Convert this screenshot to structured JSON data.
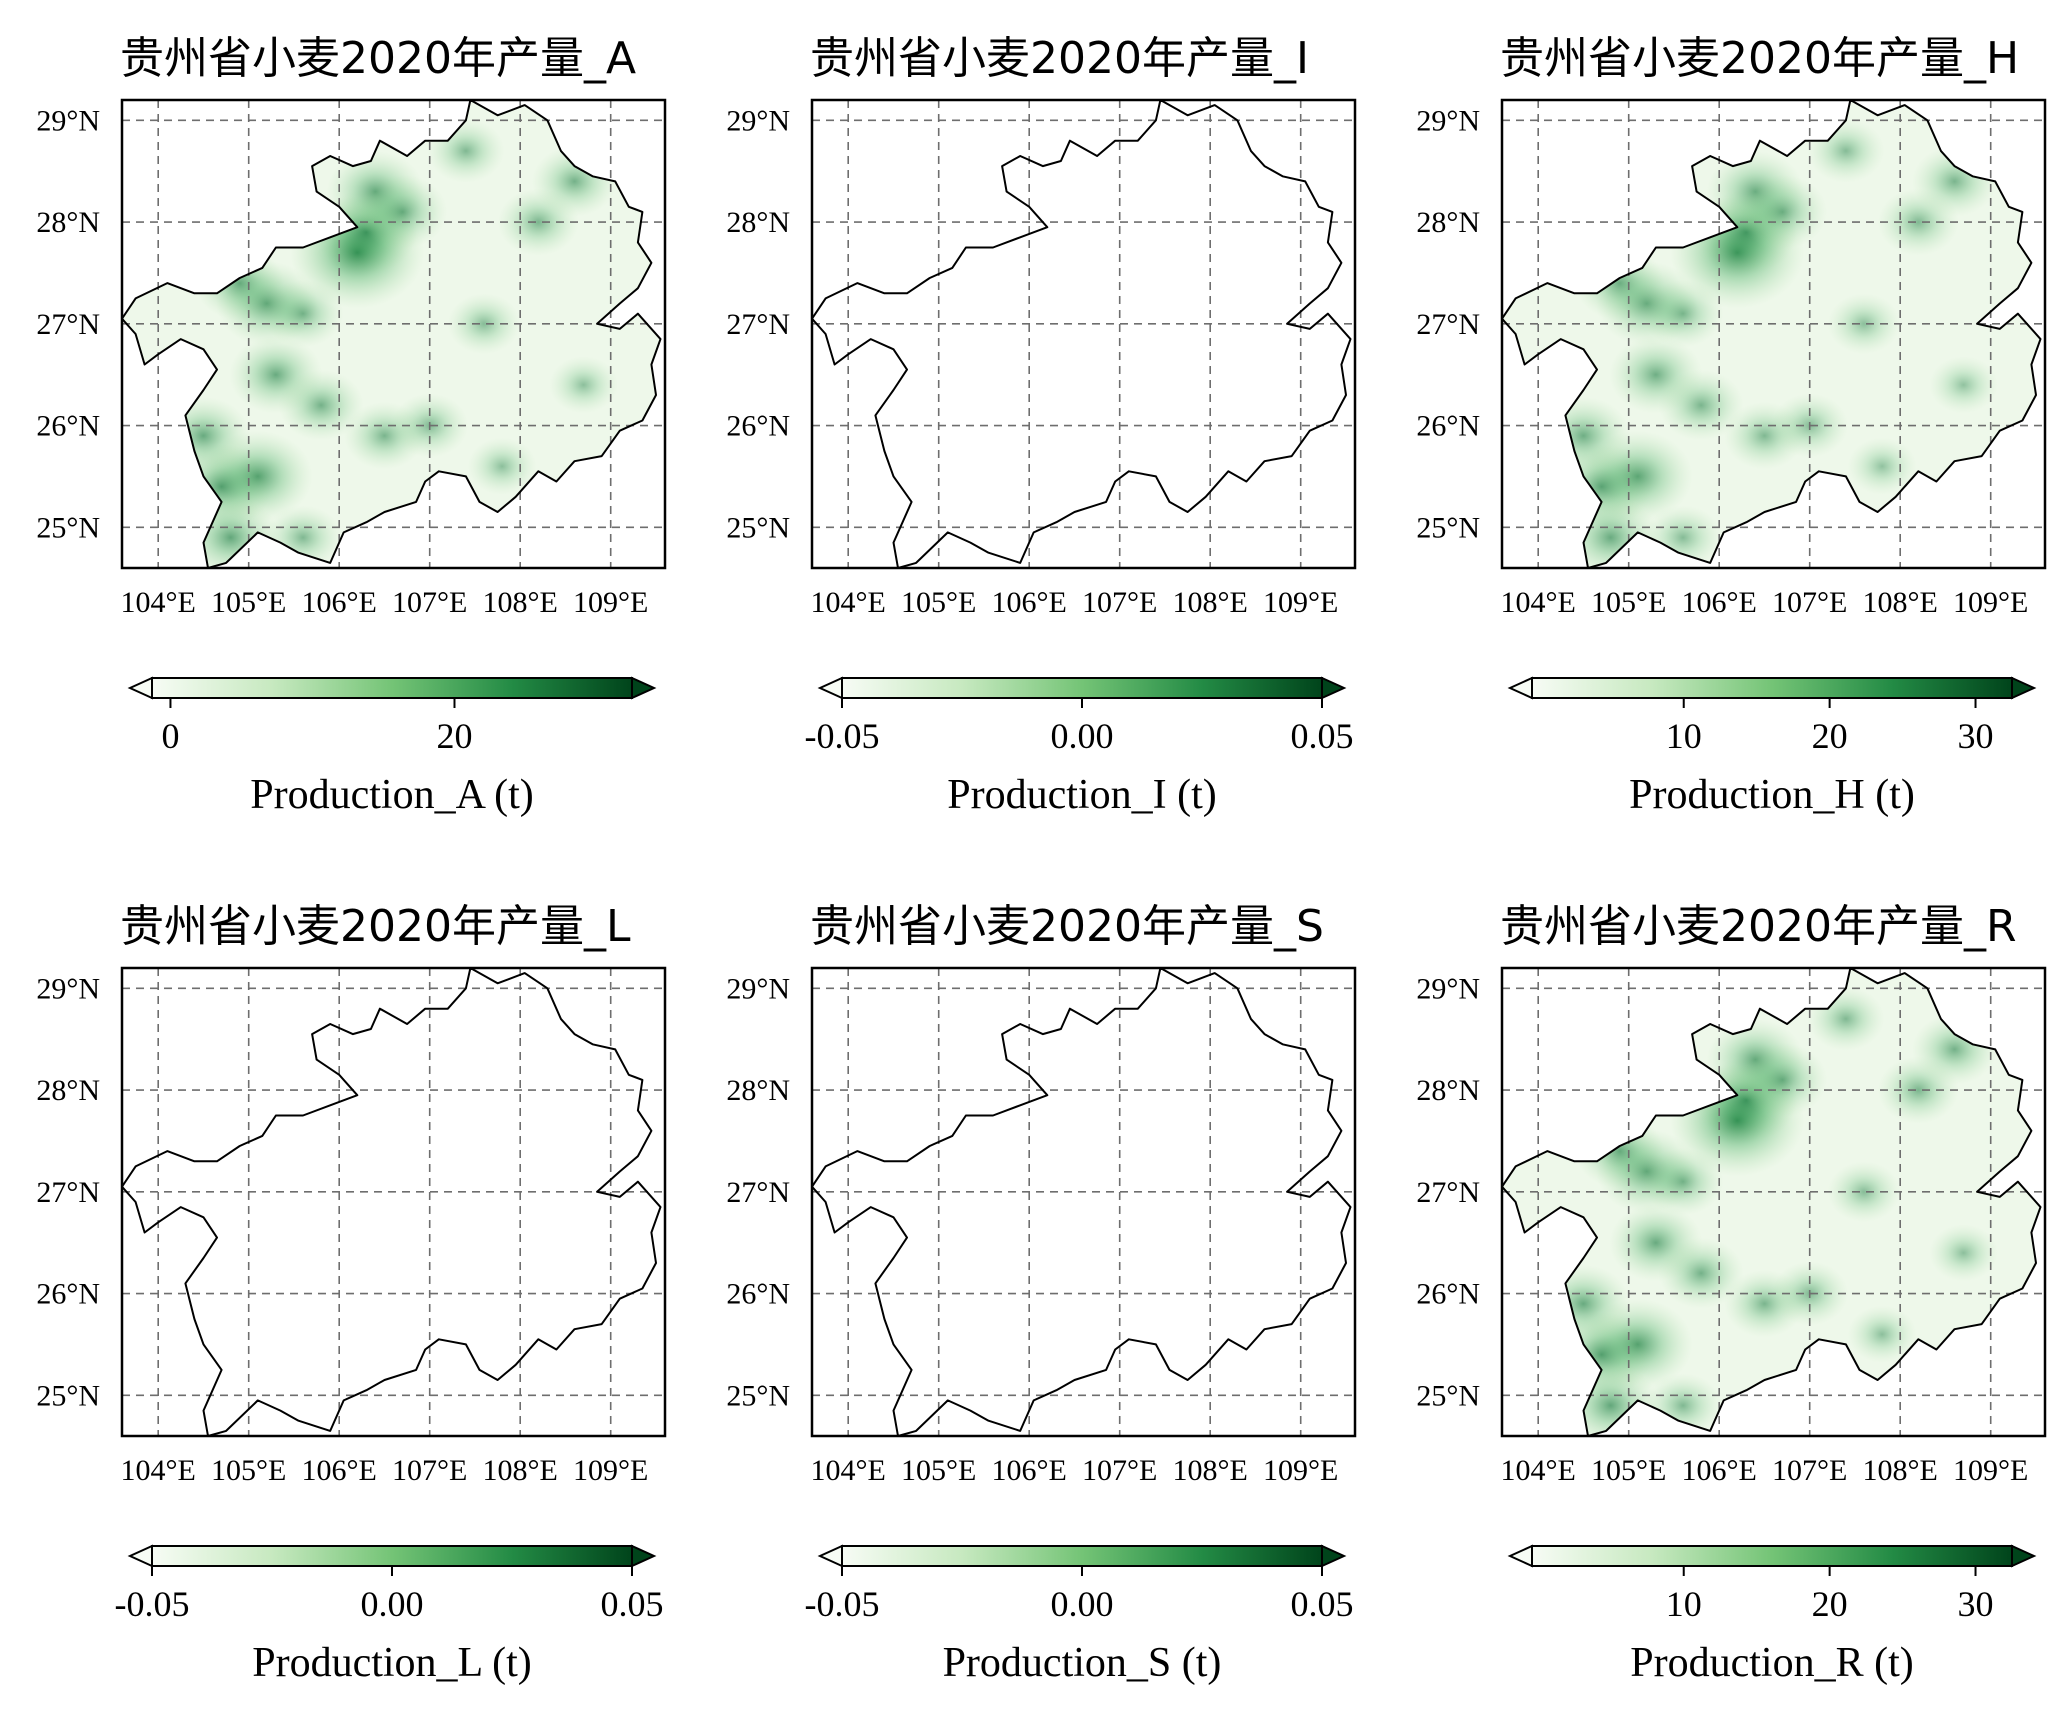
{
  "figure": {
    "lat_ticks": [
      29,
      28,
      27,
      26,
      25
    ],
    "lon_ticks": [
      104,
      105,
      106,
      107,
      108,
      109
    ],
    "lat_tick_labels": [
      "29°N",
      "28°N",
      "27°N",
      "26°N",
      "25°N"
    ],
    "lon_tick_labels": [
      "104°E",
      "105°E",
      "106°E",
      "107°E",
      "108°E",
      "109°E"
    ],
    "extent": {
      "lon_min": 103.6,
      "lon_max": 109.6,
      "lat_min": 24.6,
      "lat_max": 29.2
    },
    "colormap": "Greens",
    "colorbar_colors": [
      "#f7fcf5",
      "#c7e9c0",
      "#74c476",
      "#238b45",
      "#00441b"
    ],
    "panels": [
      {
        "title": "贵州省小麦2020年产量_A",
        "cbar_label": "Production_A (t)",
        "cbar_ticks": [
          {
            "v": 0,
            "t": "0"
          },
          {
            "v": 20,
            "t": "20"
          }
        ],
        "cbar_range": [
          -1.3,
          32.5
        ],
        "has_data": true,
        "intensity": 1.0
      },
      {
        "title": "贵州省小麦2020年产量_I",
        "cbar_label": "Production_I (t)",
        "cbar_ticks": [
          {
            "v": -0.05,
            "t": "-0.05"
          },
          {
            "v": 0.0,
            "t": "0.00"
          },
          {
            "v": 0.05,
            "t": "0.05"
          }
        ],
        "cbar_range": [
          -0.05,
          0.05
        ],
        "has_data": false,
        "intensity": 0
      },
      {
        "title": "贵州省小麦2020年产量_H",
        "cbar_label": "Production_H (t)",
        "cbar_ticks": [
          {
            "v": 10,
            "t": "10"
          },
          {
            "v": 20,
            "t": "20"
          },
          {
            "v": 30,
            "t": "30"
          }
        ],
        "cbar_range": [
          -0.4,
          32.5
        ],
        "has_data": true,
        "intensity": 0.95
      },
      {
        "title": "贵州省小麦2020年产量_L",
        "cbar_label": "Production_L (t)",
        "cbar_ticks": [
          {
            "v": -0.05,
            "t": "-0.05"
          },
          {
            "v": 0.0,
            "t": "0.00"
          },
          {
            "v": 0.05,
            "t": "0.05"
          }
        ],
        "cbar_range": [
          -0.05,
          0.05
        ],
        "has_data": false,
        "intensity": 0
      },
      {
        "title": "贵州省小麦2020年产量_S",
        "cbar_label": "Production_S (t)",
        "cbar_ticks": [
          {
            "v": -0.05,
            "t": "-0.05"
          },
          {
            "v": 0.0,
            "t": "0.00"
          },
          {
            "v": 0.05,
            "t": "0.05"
          }
        ],
        "cbar_range": [
          -0.05,
          0.05
        ],
        "has_data": false,
        "intensity": 0
      },
      {
        "title": "贵州省小麦2020年产量_R",
        "cbar_label": "Production_R (t)",
        "cbar_ticks": [
          {
            "v": 10,
            "t": "10"
          },
          {
            "v": 20,
            "t": "20"
          },
          {
            "v": 30,
            "t": "30"
          }
        ],
        "cbar_range": [
          -0.4,
          32.5
        ],
        "has_data": true,
        "intensity": 1.0
      }
    ],
    "hotspots": [
      {
        "lon": 106.2,
        "lat": 27.7,
        "weight": 1.0
      },
      {
        "lon": 106.3,
        "lat": 27.9,
        "weight": 0.6
      },
      {
        "lon": 106.4,
        "lat": 28.3,
        "weight": 0.55
      },
      {
        "lon": 106.7,
        "lat": 28.1,
        "weight": 0.45
      },
      {
        "lon": 105.2,
        "lat": 27.2,
        "weight": 0.6
      },
      {
        "lon": 104.9,
        "lat": 27.4,
        "weight": 0.45
      },
      {
        "lon": 105.6,
        "lat": 27.1,
        "weight": 0.35
      },
      {
        "lon": 105.3,
        "lat": 26.5,
        "weight": 0.5
      },
      {
        "lon": 105.8,
        "lat": 26.2,
        "weight": 0.4
      },
      {
        "lon": 105.1,
        "lat": 25.5,
        "weight": 0.7
      },
      {
        "lon": 104.7,
        "lat": 25.4,
        "weight": 0.6
      },
      {
        "lon": 104.5,
        "lat": 25.9,
        "weight": 0.5
      },
      {
        "lon": 104.8,
        "lat": 24.9,
        "weight": 0.55
      },
      {
        "lon": 106.5,
        "lat": 25.9,
        "weight": 0.35
      },
      {
        "lon": 107.0,
        "lat": 26.0,
        "weight": 0.3
      },
      {
        "lon": 108.2,
        "lat": 28.0,
        "weight": 0.35
      },
      {
        "lon": 108.6,
        "lat": 28.4,
        "weight": 0.4
      },
      {
        "lon": 107.4,
        "lat": 28.7,
        "weight": 0.3
      },
      {
        "lon": 107.6,
        "lat": 27.0,
        "weight": 0.25
      },
      {
        "lon": 105.6,
        "lat": 24.9,
        "weight": 0.3
      },
      {
        "lon": 107.8,
        "lat": 25.6,
        "weight": 0.2
      },
      {
        "lon": 108.7,
        "lat": 26.4,
        "weight": 0.2
      }
    ],
    "boundary": [
      [
        103.6,
        27.05
      ],
      [
        103.75,
        27.25
      ],
      [
        104.1,
        27.4
      ],
      [
        104.4,
        27.3
      ],
      [
        104.65,
        27.3
      ],
      [
        104.9,
        27.45
      ],
      [
        105.15,
        27.55
      ],
      [
        105.3,
        27.75
      ],
      [
        105.6,
        27.75
      ],
      [
        105.9,
        27.85
      ],
      [
        106.2,
        27.95
      ],
      [
        106.0,
        28.15
      ],
      [
        105.75,
        28.3
      ],
      [
        105.7,
        28.55
      ],
      [
        105.9,
        28.65
      ],
      [
        106.15,
        28.55
      ],
      [
        106.35,
        28.6
      ],
      [
        106.45,
        28.8
      ],
      [
        106.75,
        28.65
      ],
      [
        106.95,
        28.8
      ],
      [
        107.2,
        28.8
      ],
      [
        107.4,
        29.0
      ],
      [
        107.45,
        29.2
      ],
      [
        107.75,
        29.05
      ],
      [
        108.05,
        29.15
      ],
      [
        108.3,
        29.0
      ],
      [
        108.45,
        28.7
      ],
      [
        108.6,
        28.55
      ],
      [
        108.8,
        28.45
      ],
      [
        109.05,
        28.4
      ],
      [
        109.2,
        28.15
      ],
      [
        109.35,
        28.1
      ],
      [
        109.3,
        27.8
      ],
      [
        109.45,
        27.6
      ],
      [
        109.3,
        27.35
      ],
      [
        109.1,
        27.2
      ],
      [
        108.85,
        27.0
      ],
      [
        109.1,
        26.95
      ],
      [
        109.3,
        27.1
      ],
      [
        109.55,
        26.85
      ],
      [
        109.45,
        26.6
      ],
      [
        109.5,
        26.3
      ],
      [
        109.35,
        26.05
      ],
      [
        109.1,
        25.95
      ],
      [
        108.9,
        25.7
      ],
      [
        108.6,
        25.65
      ],
      [
        108.4,
        25.45
      ],
      [
        108.2,
        25.55
      ],
      [
        107.95,
        25.3
      ],
      [
        107.75,
        25.15
      ],
      [
        107.55,
        25.25
      ],
      [
        107.4,
        25.5
      ],
      [
        107.1,
        25.55
      ],
      [
        106.95,
        25.45
      ],
      [
        106.85,
        25.25
      ],
      [
        106.5,
        25.15
      ],
      [
        106.3,
        25.05
      ],
      [
        106.05,
        24.95
      ],
      [
        105.9,
        24.65
      ],
      [
        105.55,
        24.75
      ],
      [
        105.35,
        24.85
      ],
      [
        105.1,
        24.95
      ],
      [
        104.75,
        24.65
      ],
      [
        104.55,
        24.6
      ],
      [
        104.5,
        24.85
      ],
      [
        104.7,
        25.25
      ],
      [
        104.5,
        25.5
      ],
      [
        104.4,
        25.75
      ],
      [
        104.3,
        26.1
      ],
      [
        104.5,
        26.35
      ],
      [
        104.65,
        26.55
      ],
      [
        104.5,
        26.75
      ],
      [
        104.25,
        26.85
      ],
      [
        104.0,
        26.7
      ],
      [
        103.85,
        26.6
      ],
      [
        103.75,
        26.9
      ],
      [
        103.6,
        27.05
      ]
    ]
  }
}
